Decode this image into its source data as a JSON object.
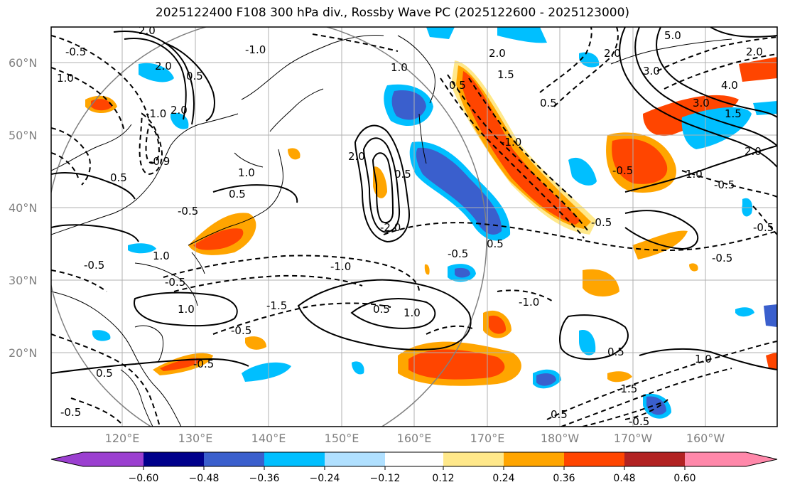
{
  "title": "2025122400 F108 300 hPa div., Rossby Wave PC (2025122600 - 2025123000)",
  "lat_labels": [
    "60°N",
    "50°N",
    "40°N",
    "30°N",
    "20°N"
  ],
  "lon_labels": [
    "120°E",
    "130°E",
    "140°E",
    "150°E",
    "160°E",
    "170°E",
    "180°W",
    "170°W",
    "160°W"
  ],
  "colorbar": {
    "ticks": [
      "−0.60",
      "−0.48",
      "−0.36",
      "−0.24",
      "−0.12",
      "0.12",
      "0.24",
      "0.36",
      "0.48",
      "0.60"
    ],
    "colors": [
      "#9b3fd0",
      "#00008b",
      "#3a5fcd",
      "#00bfff",
      "#b0e0ff",
      "#ffffff",
      "#ffe88a",
      "#ffa500",
      "#ff4500",
      "#b22222",
      "#ff88aa"
    ]
  },
  "contour_labels": [
    "0.5",
    "-0.5",
    "1.0",
    "-1.0",
    "1.5",
    "-1.5",
    "2.0",
    "-2.0",
    "3.0",
    "4.0",
    "5.0",
    "-0.9"
  ]
}
